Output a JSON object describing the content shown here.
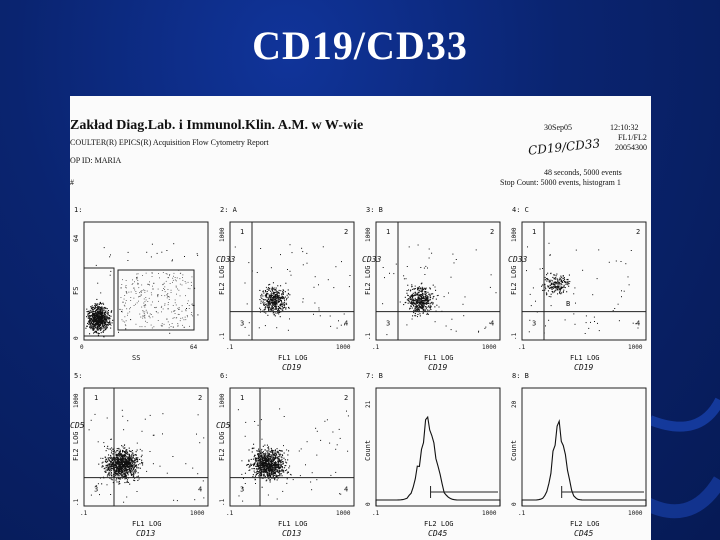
{
  "slide": {
    "title": "CD19/CD33"
  },
  "report": {
    "lab_name": "Zakład Diag.Lab. i Immunol.Klin. A.M. w W-wie",
    "system_line": "COULTER(R) EPICS(R) Acquisition Flow Cytometry Report",
    "operator_line": "OP ID:  MARIA",
    "pound": "#",
    "date": "30Sep05",
    "time": "12:10:32",
    "protocol": "FL1/FL2",
    "file_number": "20054300",
    "handwritten_title": "CD19/CD33",
    "stats_line1": "48 seconds,   5000 events",
    "stats_line2": "Stop Count:  5000 events, histogram 1"
  },
  "panels": [
    {
      "id": "1:",
      "type": "dot",
      "x_label": "SS",
      "y_label": "FS",
      "x_min": "0",
      "x_max": "64",
      "y_min": "0",
      "y_max": "64",
      "annotation_x": "",
      "annotation_y": ""
    },
    {
      "id": "2: A",
      "type": "dot",
      "x_label": "FL1 LOG",
      "y_label": "FL2 LOG",
      "x_min": ".1",
      "x_max": "1000",
      "y_min": ".1",
      "y_max": "1000",
      "annotation_x": "CD19",
      "annotation_y": "CD33"
    },
    {
      "id": "3: B",
      "type": "dot",
      "x_label": "FL1 LOG",
      "y_label": "FL2 LOG",
      "x_min": ".1",
      "x_max": "1000",
      "y_min": ".1",
      "y_max": "1000",
      "annotation_x": "CD19",
      "annotation_y": "CD33"
    },
    {
      "id": "4: C",
      "type": "dot",
      "x_label": "FL1 LOG",
      "y_label": "FL2 LOG",
      "x_min": ".1",
      "x_max": "1000",
      "y_min": ".1",
      "y_max": "1000",
      "annotation_x": "CD19",
      "annotation_y": "CD33"
    },
    {
      "id": "5:",
      "type": "dot",
      "x_label": "FL1 LOG",
      "y_label": "FL2 LOG",
      "x_min": ".1",
      "x_max": "1000",
      "y_min": ".1",
      "y_max": "1000",
      "annotation_x": "CD13",
      "annotation_y": "CD5"
    },
    {
      "id": "6:",
      "type": "dot",
      "x_label": "FL1 LOG",
      "y_label": "FL2 LOG",
      "x_min": ".1",
      "x_max": "1000",
      "y_min": ".1",
      "y_max": "1000",
      "annotation_x": "CD13",
      "annotation_y": "CD5"
    },
    {
      "id": "7: B",
      "type": "histogram",
      "x_label": "FL2 LOG",
      "y_label": "Count",
      "x_min": ".1",
      "x_max": "1000",
      "y_min": "0",
      "y_max": "21",
      "annotation_x": "CD45",
      "annotation_y": ""
    },
    {
      "id": "8: B",
      "type": "histogram",
      "x_label": "FL2 LOG",
      "y_label": "Count",
      "x_min": ".1",
      "x_max": "1000",
      "y_min": "0",
      "y_max": "20",
      "annotation_x": "CD45",
      "annotation_y": ""
    }
  ],
  "quadrant_labels": [
    "1",
    "2",
    "3",
    "4"
  ],
  "gate_labels": {
    "panel1_gate": "A",
    "panel4_gate": "B"
  }
}
